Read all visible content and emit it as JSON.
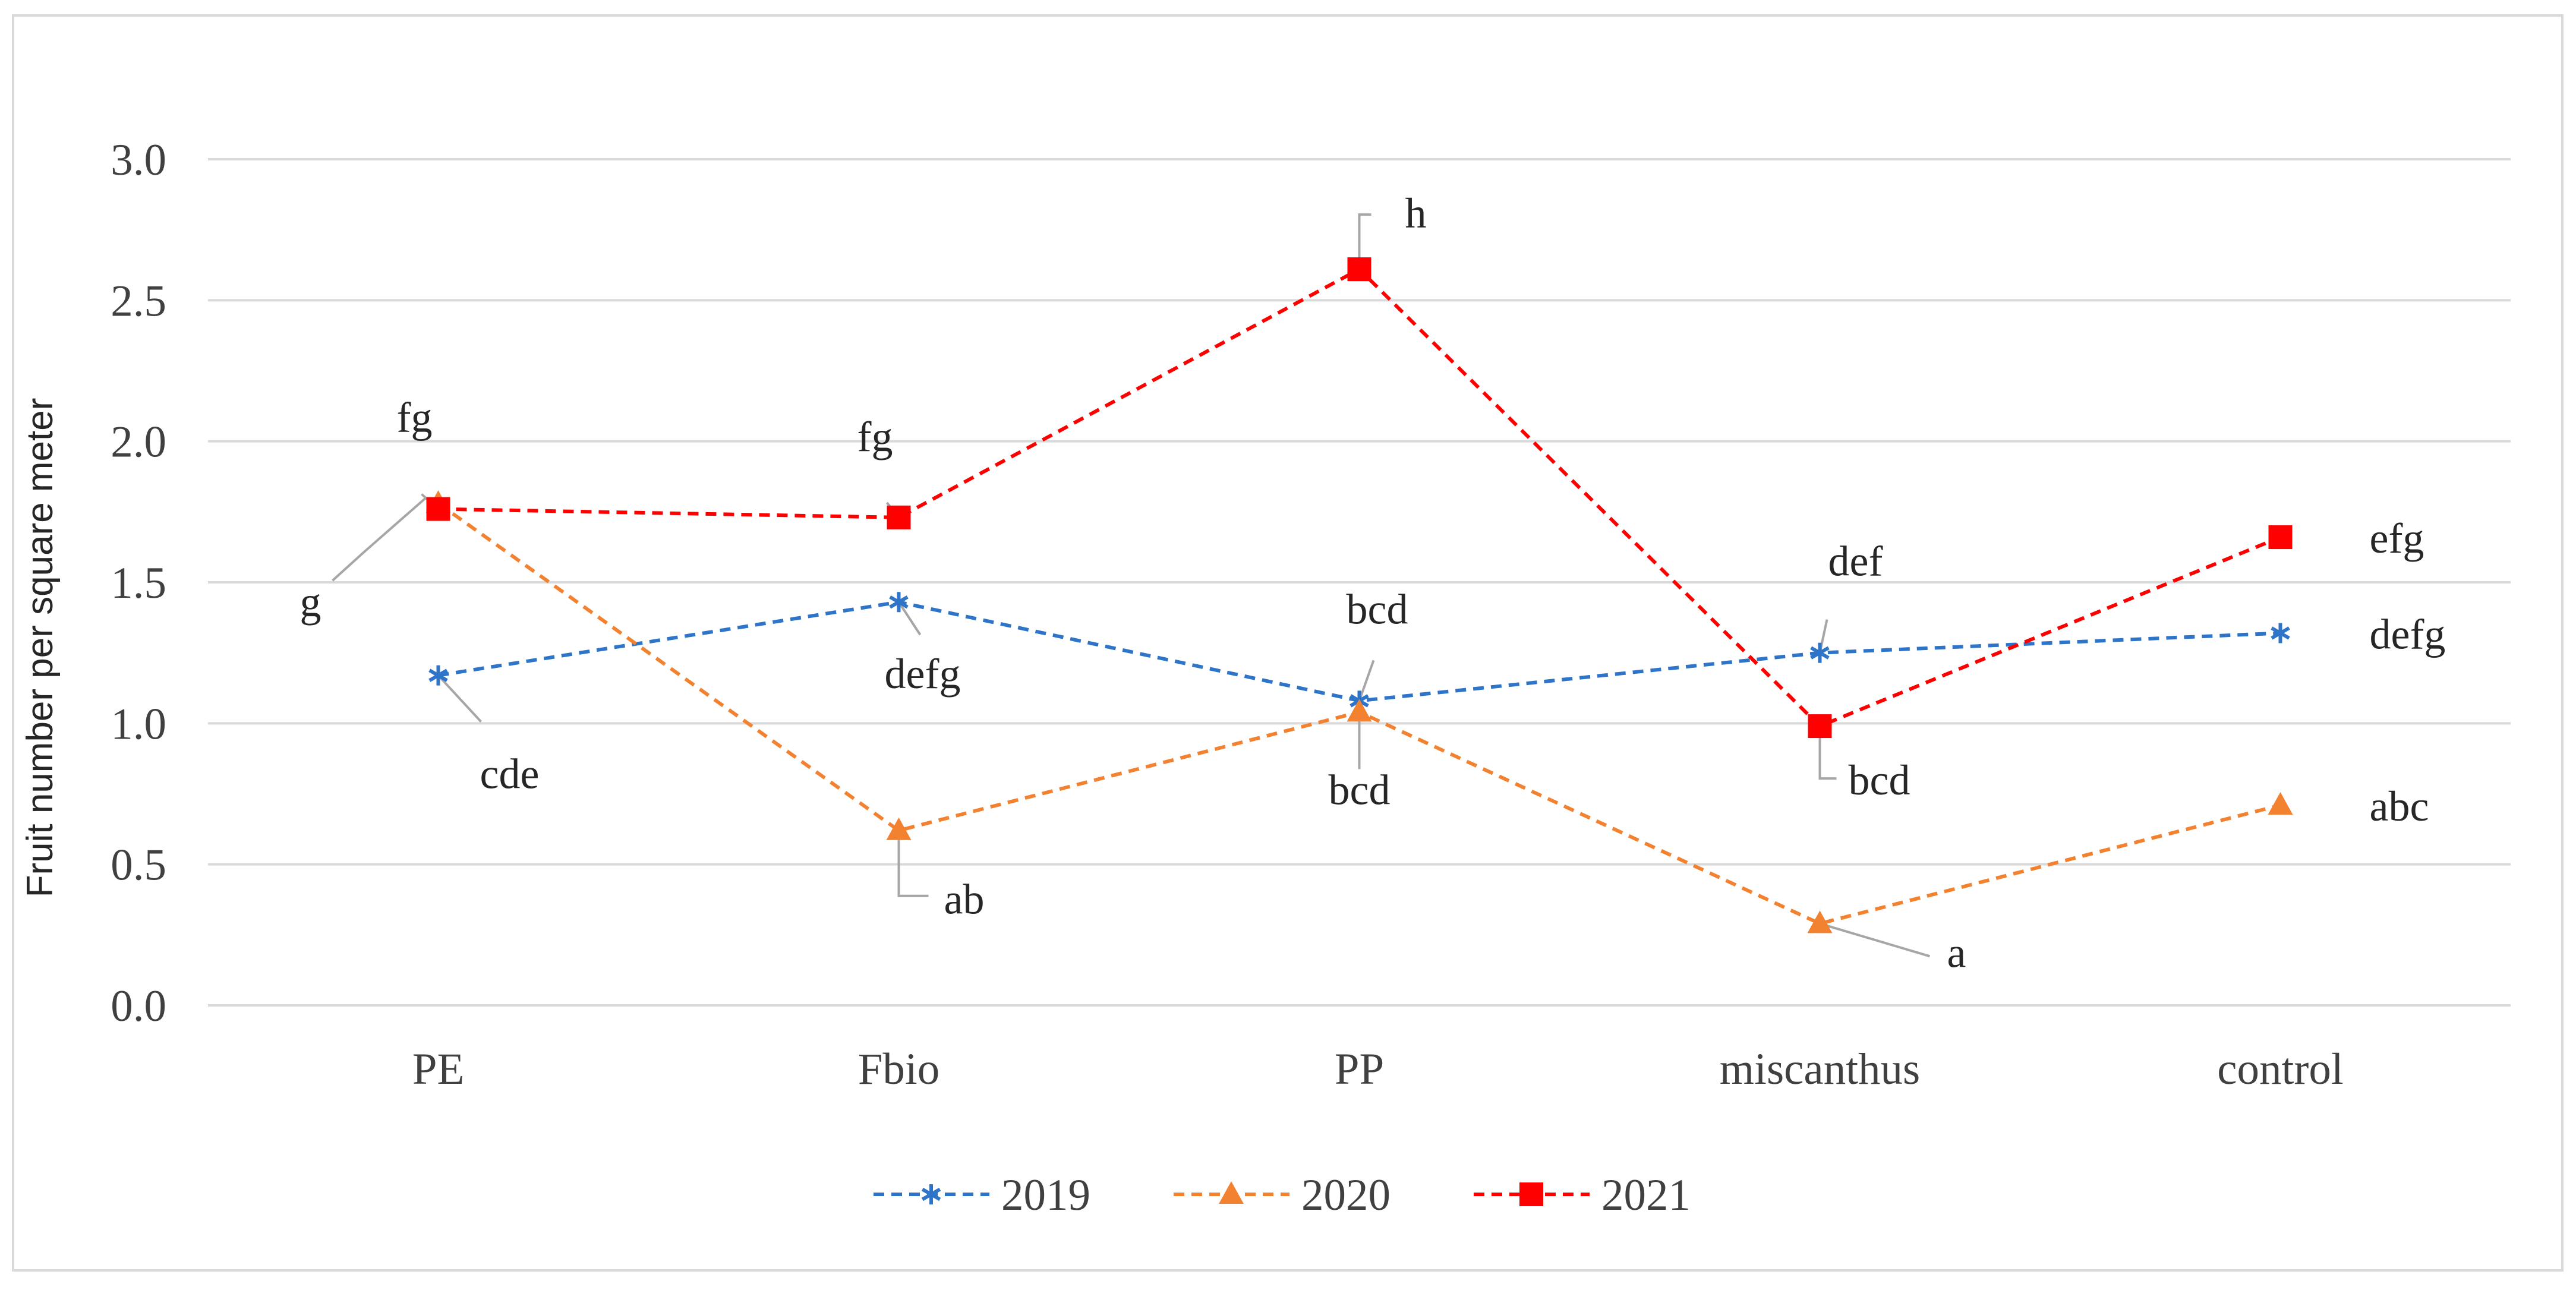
{
  "chart_data": {
    "type": "line",
    "title": "",
    "xlabel": "",
    "ylabel": "Fruit number per square meter",
    "categories": [
      "PE",
      "Fbio",
      "PP",
      "miscanthus",
      "control"
    ],
    "ylim": [
      0,
      3
    ],
    "yticks": [
      0,
      0.5,
      1,
      1.5,
      2,
      2.5,
      3
    ],
    "ytick_labels": [
      "0.0",
      "0.5",
      "1.0",
      "1.5",
      "2.0",
      "2.5",
      "3.0"
    ],
    "grid": true,
    "legend_position": "bottom",
    "series": [
      {
        "name": "2019",
        "color": "#2e74c8",
        "marker": "asterisk",
        "values": [
          1.17,
          1.43,
          1.08,
          1.25,
          1.32
        ],
        "labels": [
          "cde",
          "defg",
          "bcd",
          "def",
          "defg"
        ]
      },
      {
        "name": "2020",
        "color": "#f28230",
        "marker": "triangle",
        "values": [
          1.78,
          0.62,
          1.04,
          0.29,
          0.71
        ],
        "labels": [
          "g",
          "ab",
          "bcd",
          "a",
          "abc"
        ]
      },
      {
        "name": "2021",
        "color": "#ff0000",
        "marker": "square",
        "values": [
          1.76,
          1.73,
          2.61,
          0.99,
          1.66
        ],
        "labels": [
          "fg",
          "fg",
          "h",
          "bcd",
          "efg"
        ]
      }
    ]
  }
}
